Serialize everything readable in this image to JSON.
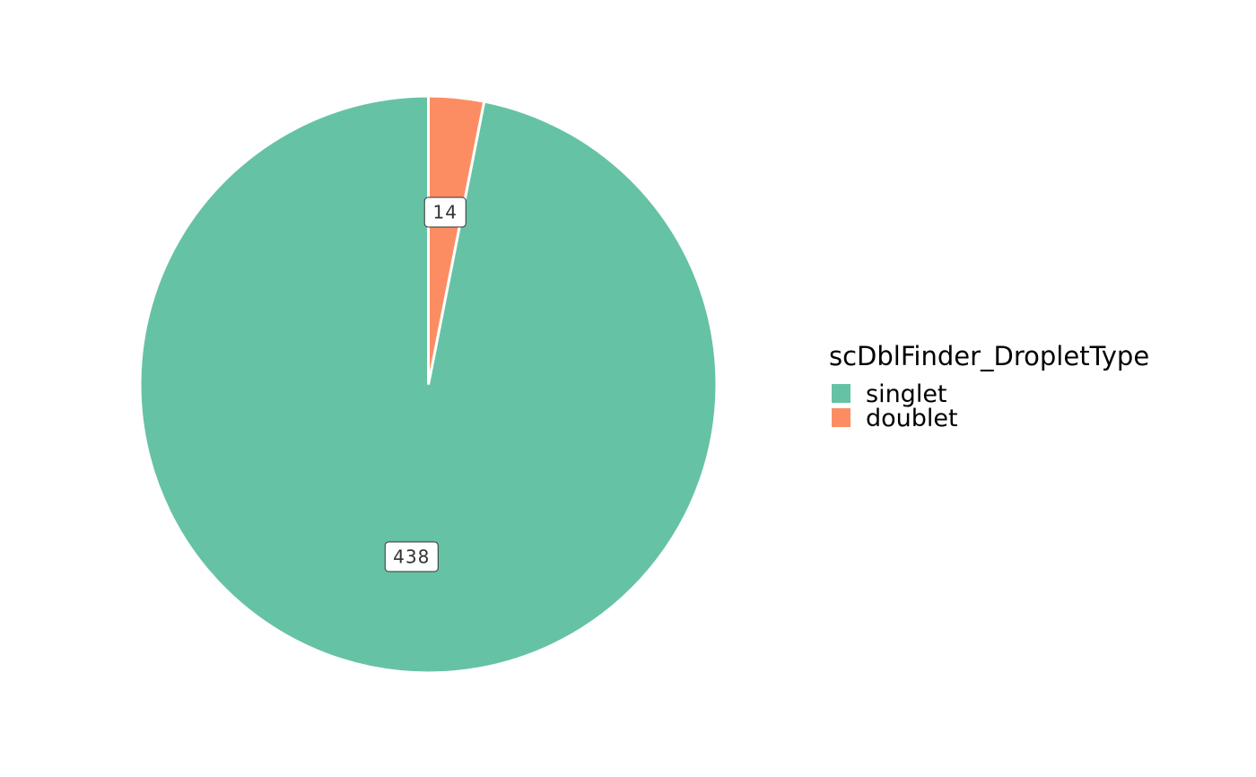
{
  "chart_data": {
    "type": "pie",
    "categories": [
      "singlet",
      "doublet"
    ],
    "values": [
      438,
      14
    ],
    "colors": [
      "#66c2a5",
      "#fc8d62"
    ],
    "legend": {
      "title": "scDblFinder_DropletType",
      "position": "right",
      "entries": [
        "singlet",
        "doublet"
      ]
    },
    "data_labels": [
      "438",
      "14"
    ],
    "direction": "counter-clockwise from top"
  }
}
